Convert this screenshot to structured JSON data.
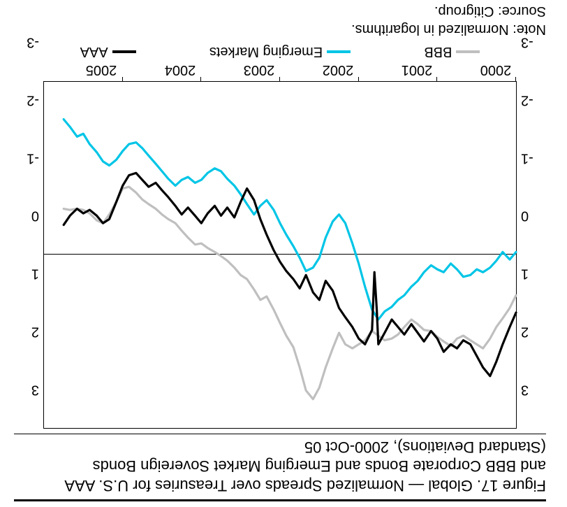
{
  "title": {
    "line1": "Figure 17. Global — Normalized Spreads over Treasuries for U.S. AAA",
    "line2": "and BBB Corporate Bonds and Emerging Market Sovereign Bonds",
    "line3": "(Standard Deviations), 2000-Oct 05"
  },
  "notes": {
    "note1": "Note: Normalized in logarithms.",
    "note2": "Source: Citigroup."
  },
  "chart": {
    "type": "line",
    "background_color": "#ffffff",
    "border_color": "#000000",
    "y": {
      "min": -3,
      "max": 3,
      "ticks": [
        3,
        2,
        1,
        0,
        -1,
        -2,
        -3
      ],
      "label_fontsize": 20,
      "show_left": true,
      "show_right": true
    },
    "x": {
      "min": 0,
      "max": 6,
      "year_labels": [
        "2000",
        "2001",
        "2002",
        "2003",
        "2004",
        "2005"
      ],
      "year_positions": [
        0,
        1,
        2,
        3,
        4,
        5
      ],
      "label_fontsize": 20
    },
    "zero_line_y": 0,
    "series": [
      {
        "name": "BBB",
        "legend": "BBB",
        "color": "#bfbfbf",
        "width": 3.2,
        "points": [
          [
            0.0,
            0.7
          ],
          [
            0.08,
            0.92
          ],
          [
            0.17,
            1.1
          ],
          [
            0.25,
            1.25
          ],
          [
            0.33,
            1.45
          ],
          [
            0.42,
            1.62
          ],
          [
            0.5,
            1.55
          ],
          [
            0.58,
            1.48
          ],
          [
            0.67,
            1.4
          ],
          [
            0.75,
            1.45
          ],
          [
            0.83,
            1.58
          ],
          [
            0.92,
            1.5
          ],
          [
            1.0,
            1.42
          ],
          [
            1.08,
            1.32
          ],
          [
            1.17,
            1.3
          ],
          [
            1.25,
            1.2
          ],
          [
            1.33,
            1.12
          ],
          [
            1.42,
            1.25
          ],
          [
            1.5,
            1.38
          ],
          [
            1.58,
            1.45
          ],
          [
            1.67,
            1.48
          ],
          [
            1.75,
            1.4
          ],
          [
            1.83,
            1.32
          ],
          [
            1.92,
            1.48
          ],
          [
            2.0,
            1.55
          ],
          [
            2.08,
            1.62
          ],
          [
            2.17,
            1.55
          ],
          [
            2.25,
            1.35
          ],
          [
            2.33,
            1.62
          ],
          [
            2.42,
            1.95
          ],
          [
            2.5,
            2.3
          ],
          [
            2.58,
            2.5
          ],
          [
            2.67,
            2.35
          ],
          [
            2.75,
            1.95
          ],
          [
            2.83,
            1.6
          ],
          [
            2.92,
            1.4
          ],
          [
            3.0,
            1.18
          ],
          [
            3.08,
            0.95
          ],
          [
            3.17,
            0.72
          ],
          [
            3.25,
            0.78
          ],
          [
            3.33,
            0.6
          ],
          [
            3.42,
            0.42
          ],
          [
            3.5,
            0.35
          ],
          [
            3.58,
            0.22
          ],
          [
            3.67,
            0.1
          ],
          [
            3.75,
            0.02
          ],
          [
            3.83,
            -0.05
          ],
          [
            3.92,
            -0.12
          ],
          [
            4.0,
            -0.2
          ],
          [
            4.08,
            -0.18
          ],
          [
            4.17,
            -0.3
          ],
          [
            4.25,
            -0.42
          ],
          [
            4.33,
            -0.55
          ],
          [
            4.42,
            -0.62
          ],
          [
            4.5,
            -0.7
          ],
          [
            4.58,
            -0.8
          ],
          [
            4.67,
            -0.88
          ],
          [
            4.75,
            -0.96
          ],
          [
            4.83,
            -1.08
          ],
          [
            4.92,
            -1.18
          ],
          [
            5.0,
            -1.15
          ],
          [
            5.08,
            -0.92
          ],
          [
            5.17,
            -0.7
          ],
          [
            5.25,
            -0.55
          ],
          [
            5.33,
            -0.6
          ],
          [
            5.42,
            -0.72
          ],
          [
            5.5,
            -0.78
          ],
          [
            5.58,
            -0.8
          ],
          [
            5.67,
            -0.78
          ],
          [
            5.75,
            -0.8
          ]
        ]
      },
      {
        "name": "Emerging Markets",
        "legend": "Emerging Markets",
        "color": "#00c5e6",
        "width": 3.2,
        "points": [
          [
            0.0,
            -0.05
          ],
          [
            0.08,
            0.08
          ],
          [
            0.17,
            -0.05
          ],
          [
            0.25,
            0.1
          ],
          [
            0.33,
            0.22
          ],
          [
            0.42,
            0.3
          ],
          [
            0.5,
            0.25
          ],
          [
            0.58,
            0.35
          ],
          [
            0.67,
            0.38
          ],
          [
            0.75,
            0.25
          ],
          [
            0.83,
            0.15
          ],
          [
            0.92,
            0.3
          ],
          [
            1.0,
            0.25
          ],
          [
            1.08,
            0.18
          ],
          [
            1.17,
            0.3
          ],
          [
            1.25,
            0.45
          ],
          [
            1.33,
            0.55
          ],
          [
            1.42,
            0.7
          ],
          [
            1.5,
            0.78
          ],
          [
            1.58,
            0.9
          ],
          [
            1.67,
            0.98
          ],
          [
            1.75,
            1.12
          ],
          [
            1.83,
            0.95
          ],
          [
            1.92,
            0.55
          ],
          [
            2.0,
            0.15
          ],
          [
            2.08,
            -0.2
          ],
          [
            2.17,
            -0.55
          ],
          [
            2.25,
            -0.7
          ],
          [
            2.33,
            -0.58
          ],
          [
            2.42,
            -0.3
          ],
          [
            2.5,
            0.05
          ],
          [
            2.58,
            0.22
          ],
          [
            2.67,
            0.28
          ],
          [
            2.75,
            0.05
          ],
          [
            2.83,
            -0.15
          ],
          [
            2.92,
            -0.35
          ],
          [
            3.0,
            -0.55
          ],
          [
            3.08,
            -0.78
          ],
          [
            3.17,
            -0.95
          ],
          [
            3.25,
            -0.85
          ],
          [
            3.33,
            -0.7
          ],
          [
            3.42,
            -0.88
          ],
          [
            3.5,
            -1.05
          ],
          [
            3.58,
            -1.2
          ],
          [
            3.67,
            -1.32
          ],
          [
            3.75,
            -1.45
          ],
          [
            3.83,
            -1.5
          ],
          [
            3.92,
            -1.42
          ],
          [
            4.0,
            -1.3
          ],
          [
            4.08,
            -1.25
          ],
          [
            4.17,
            -1.35
          ],
          [
            4.25,
            -1.3
          ],
          [
            4.33,
            -1.2
          ],
          [
            4.42,
            -1.32
          ],
          [
            4.5,
            -1.45
          ],
          [
            4.58,
            -1.58
          ],
          [
            4.67,
            -1.72
          ],
          [
            4.75,
            -1.85
          ],
          [
            4.83,
            -1.95
          ],
          [
            4.92,
            -1.92
          ],
          [
            5.0,
            -1.8
          ],
          [
            5.08,
            -1.65
          ],
          [
            5.17,
            -1.55
          ],
          [
            5.25,
            -1.62
          ],
          [
            5.33,
            -1.78
          ],
          [
            5.42,
            -1.92
          ],
          [
            5.5,
            -2.1
          ],
          [
            5.58,
            -2.05
          ],
          [
            5.67,
            -2.22
          ],
          [
            5.75,
            -2.35
          ]
        ]
      },
      {
        "name": "AAA",
        "legend": "AAA",
        "color": "#000000",
        "width": 3.2,
        "points": [
          [
            0.0,
            1.0
          ],
          [
            0.08,
            1.25
          ],
          [
            0.17,
            1.55
          ],
          [
            0.25,
            1.85
          ],
          [
            0.33,
            2.1
          ],
          [
            0.42,
            1.95
          ],
          [
            0.5,
            1.75
          ],
          [
            0.58,
            1.55
          ],
          [
            0.67,
            1.48
          ],
          [
            0.75,
            1.62
          ],
          [
            0.83,
            1.55
          ],
          [
            0.92,
            1.68
          ],
          [
            1.0,
            1.45
          ],
          [
            1.08,
            1.32
          ],
          [
            1.17,
            1.5
          ],
          [
            1.25,
            1.35
          ],
          [
            1.33,
            1.2
          ],
          [
            1.42,
            1.38
          ],
          [
            1.5,
            1.25
          ],
          [
            1.58,
            1.12
          ],
          [
            1.67,
            1.35
          ],
          [
            1.75,
            1.55
          ],
          [
            1.77,
            0.95
          ],
          [
            1.8,
            0.3
          ],
          [
            1.83,
            1.3
          ],
          [
            1.92,
            1.55
          ],
          [
            2.0,
            1.45
          ],
          [
            2.08,
            1.25
          ],
          [
            2.17,
            1.08
          ],
          [
            2.25,
            0.92
          ],
          [
            2.33,
            0.62
          ],
          [
            2.42,
            0.45
          ],
          [
            2.5,
            0.78
          ],
          [
            2.58,
            0.65
          ],
          [
            2.67,
            0.35
          ],
          [
            2.75,
            0.58
          ],
          [
            2.83,
            0.42
          ],
          [
            2.92,
            0.28
          ],
          [
            3.0,
            0.12
          ],
          [
            3.08,
            -0.08
          ],
          [
            3.17,
            -0.35
          ],
          [
            3.25,
            -0.62
          ],
          [
            3.33,
            -0.95
          ],
          [
            3.42,
            -1.15
          ],
          [
            3.5,
            -0.92
          ],
          [
            3.58,
            -0.65
          ],
          [
            3.67,
            -0.82
          ],
          [
            3.75,
            -0.68
          ],
          [
            3.83,
            -0.85
          ],
          [
            3.92,
            -0.72
          ],
          [
            4.0,
            -0.55
          ],
          [
            4.08,
            -0.68
          ],
          [
            4.17,
            -0.82
          ],
          [
            4.25,
            -0.7
          ],
          [
            4.33,
            -0.85
          ],
          [
            4.42,
            -1.0
          ],
          [
            4.5,
            -1.12
          ],
          [
            4.58,
            -1.25
          ],
          [
            4.67,
            -1.18
          ],
          [
            4.75,
            -1.3
          ],
          [
            4.83,
            -1.42
          ],
          [
            4.92,
            -1.38
          ],
          [
            5.0,
            -1.2
          ],
          [
            5.08,
            -0.92
          ],
          [
            5.17,
            -0.62
          ],
          [
            5.25,
            -0.55
          ],
          [
            5.33,
            -0.68
          ],
          [
            5.42,
            -0.78
          ],
          [
            5.5,
            -0.72
          ],
          [
            5.58,
            -0.8
          ],
          [
            5.67,
            -0.68
          ],
          [
            5.75,
            -0.52
          ]
        ]
      }
    ],
    "legend": {
      "fontsize": 20,
      "items": [
        "BBB",
        "Emerging Markets",
        "AAA"
      ]
    }
  }
}
